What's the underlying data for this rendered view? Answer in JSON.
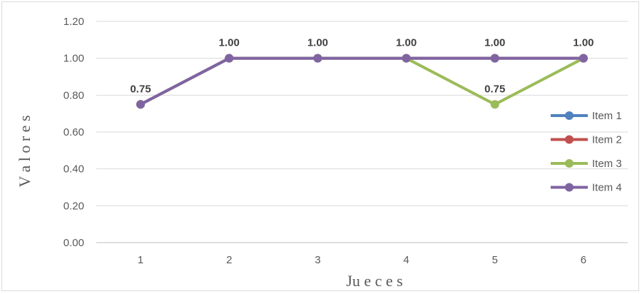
{
  "chart_data": {
    "type": "line",
    "title": "",
    "xlabel": "Ju e c e s",
    "ylabel": "V a l o r e s",
    "categories": [
      "1",
      "2",
      "3",
      "4",
      "5",
      "6"
    ],
    "ylim": [
      0,
      1.2
    ],
    "yticks": [
      "0.00",
      "0.20",
      "0.40",
      "0.60",
      "0.80",
      "1.00",
      "1.20"
    ],
    "grid": true,
    "legend_position": "right",
    "series": [
      {
        "name": "Item 1",
        "color": "#4f81bd",
        "values": [
          0.75,
          1,
          1,
          1,
          1,
          1
        ]
      },
      {
        "name": "Item 2",
        "color": "#c0504d",
        "values": [
          0.75,
          1,
          1,
          1,
          1,
          1
        ]
      },
      {
        "name": "Item 3",
        "color": "#9bbb59",
        "values": [
          0.75,
          1,
          1,
          1,
          0.75,
          1
        ]
      },
      {
        "name": "Item 4",
        "color": "#8064a2",
        "values": [
          0.75,
          1,
          1,
          1,
          1,
          1
        ]
      }
    ],
    "data_labels": [
      {
        "category": "1",
        "text": "0.75"
      },
      {
        "category": "2",
        "text": "1.00"
      },
      {
        "category": "3",
        "text": "1.00"
      },
      {
        "category": "4",
        "text": "1.00"
      },
      {
        "category": "5",
        "text": "1.00"
      },
      {
        "category": "5",
        "text": "0.75"
      },
      {
        "category": "6",
        "text": "1.00"
      }
    ]
  }
}
